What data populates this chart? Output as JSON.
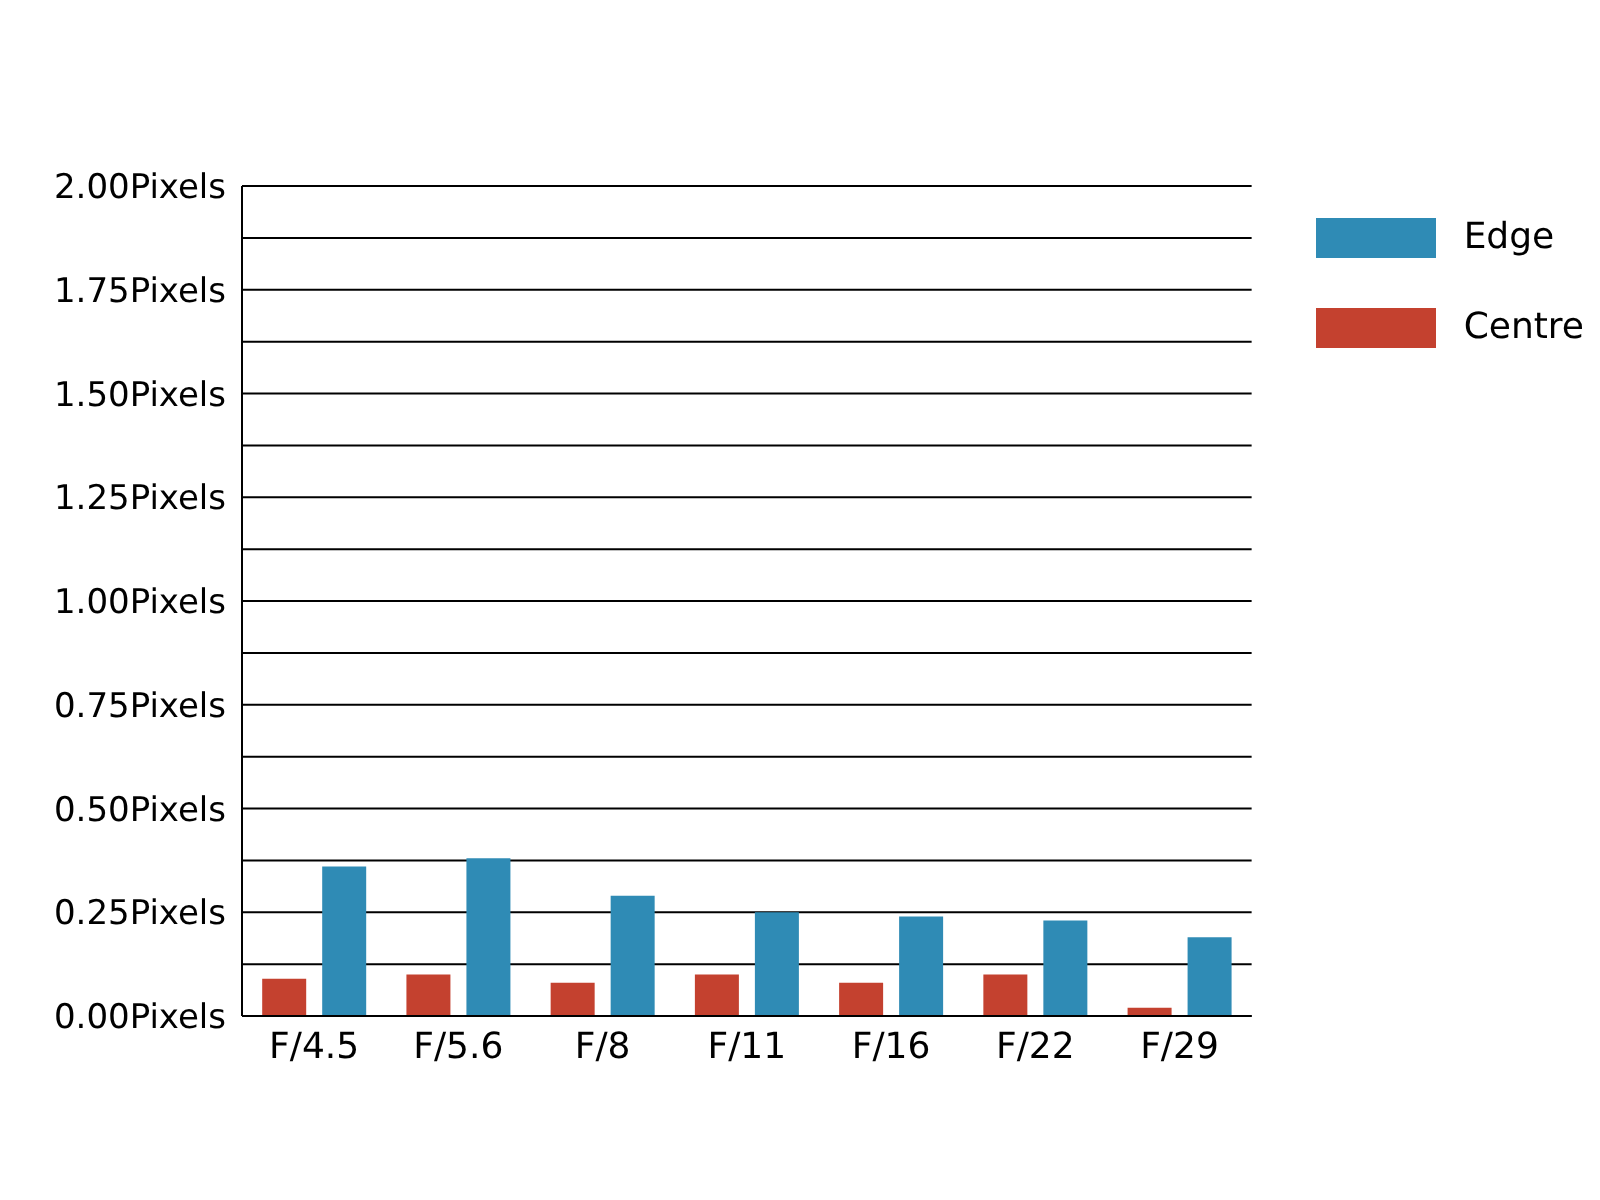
{
  "chart_data": {
    "type": "bar",
    "categories": [
      "F/4.5",
      "F/5.6",
      "F/8",
      "F/11",
      "F/16",
      "F/22",
      "F/29"
    ],
    "series": [
      {
        "name": "Centre",
        "color": "#c4412f",
        "values": [
          0.09,
          0.1,
          0.08,
          0.1,
          0.08,
          0.1,
          0.02
        ]
      },
      {
        "name": "Edge",
        "color": "#2f8bb5",
        "values": [
          0.36,
          0.38,
          0.29,
          0.25,
          0.24,
          0.23,
          0.19
        ]
      }
    ],
    "ylim": [
      0,
      2
    ],
    "yticks": [
      {
        "value": 0,
        "label": "0.00Pixels"
      },
      {
        "value": 0.125,
        "label": null
      },
      {
        "value": 0.25,
        "label": "0.25Pixels"
      },
      {
        "value": 0.375,
        "label": null
      },
      {
        "value": 0.5,
        "label": "0.50Pixels"
      },
      {
        "value": 0.625,
        "label": null
      },
      {
        "value": 0.75,
        "label": "0.75Pixels"
      },
      {
        "value": 0.875,
        "label": null
      },
      {
        "value": 1,
        "label": "1.00Pixels"
      },
      {
        "value": 1.125,
        "label": null
      },
      {
        "value": 1.25,
        "label": "1.25Pixels"
      },
      {
        "value": 1.375,
        "label": null
      },
      {
        "value": 1.5,
        "label": "1.50Pixels"
      },
      {
        "value": 1.625,
        "label": null
      },
      {
        "value": 1.75,
        "label": "1.75Pixels"
      },
      {
        "value": 1.875,
        "label": null
      },
      {
        "value": 2,
        "label": "2.00Pixels"
      }
    ],
    "grid": "y",
    "legend": "top right"
  }
}
